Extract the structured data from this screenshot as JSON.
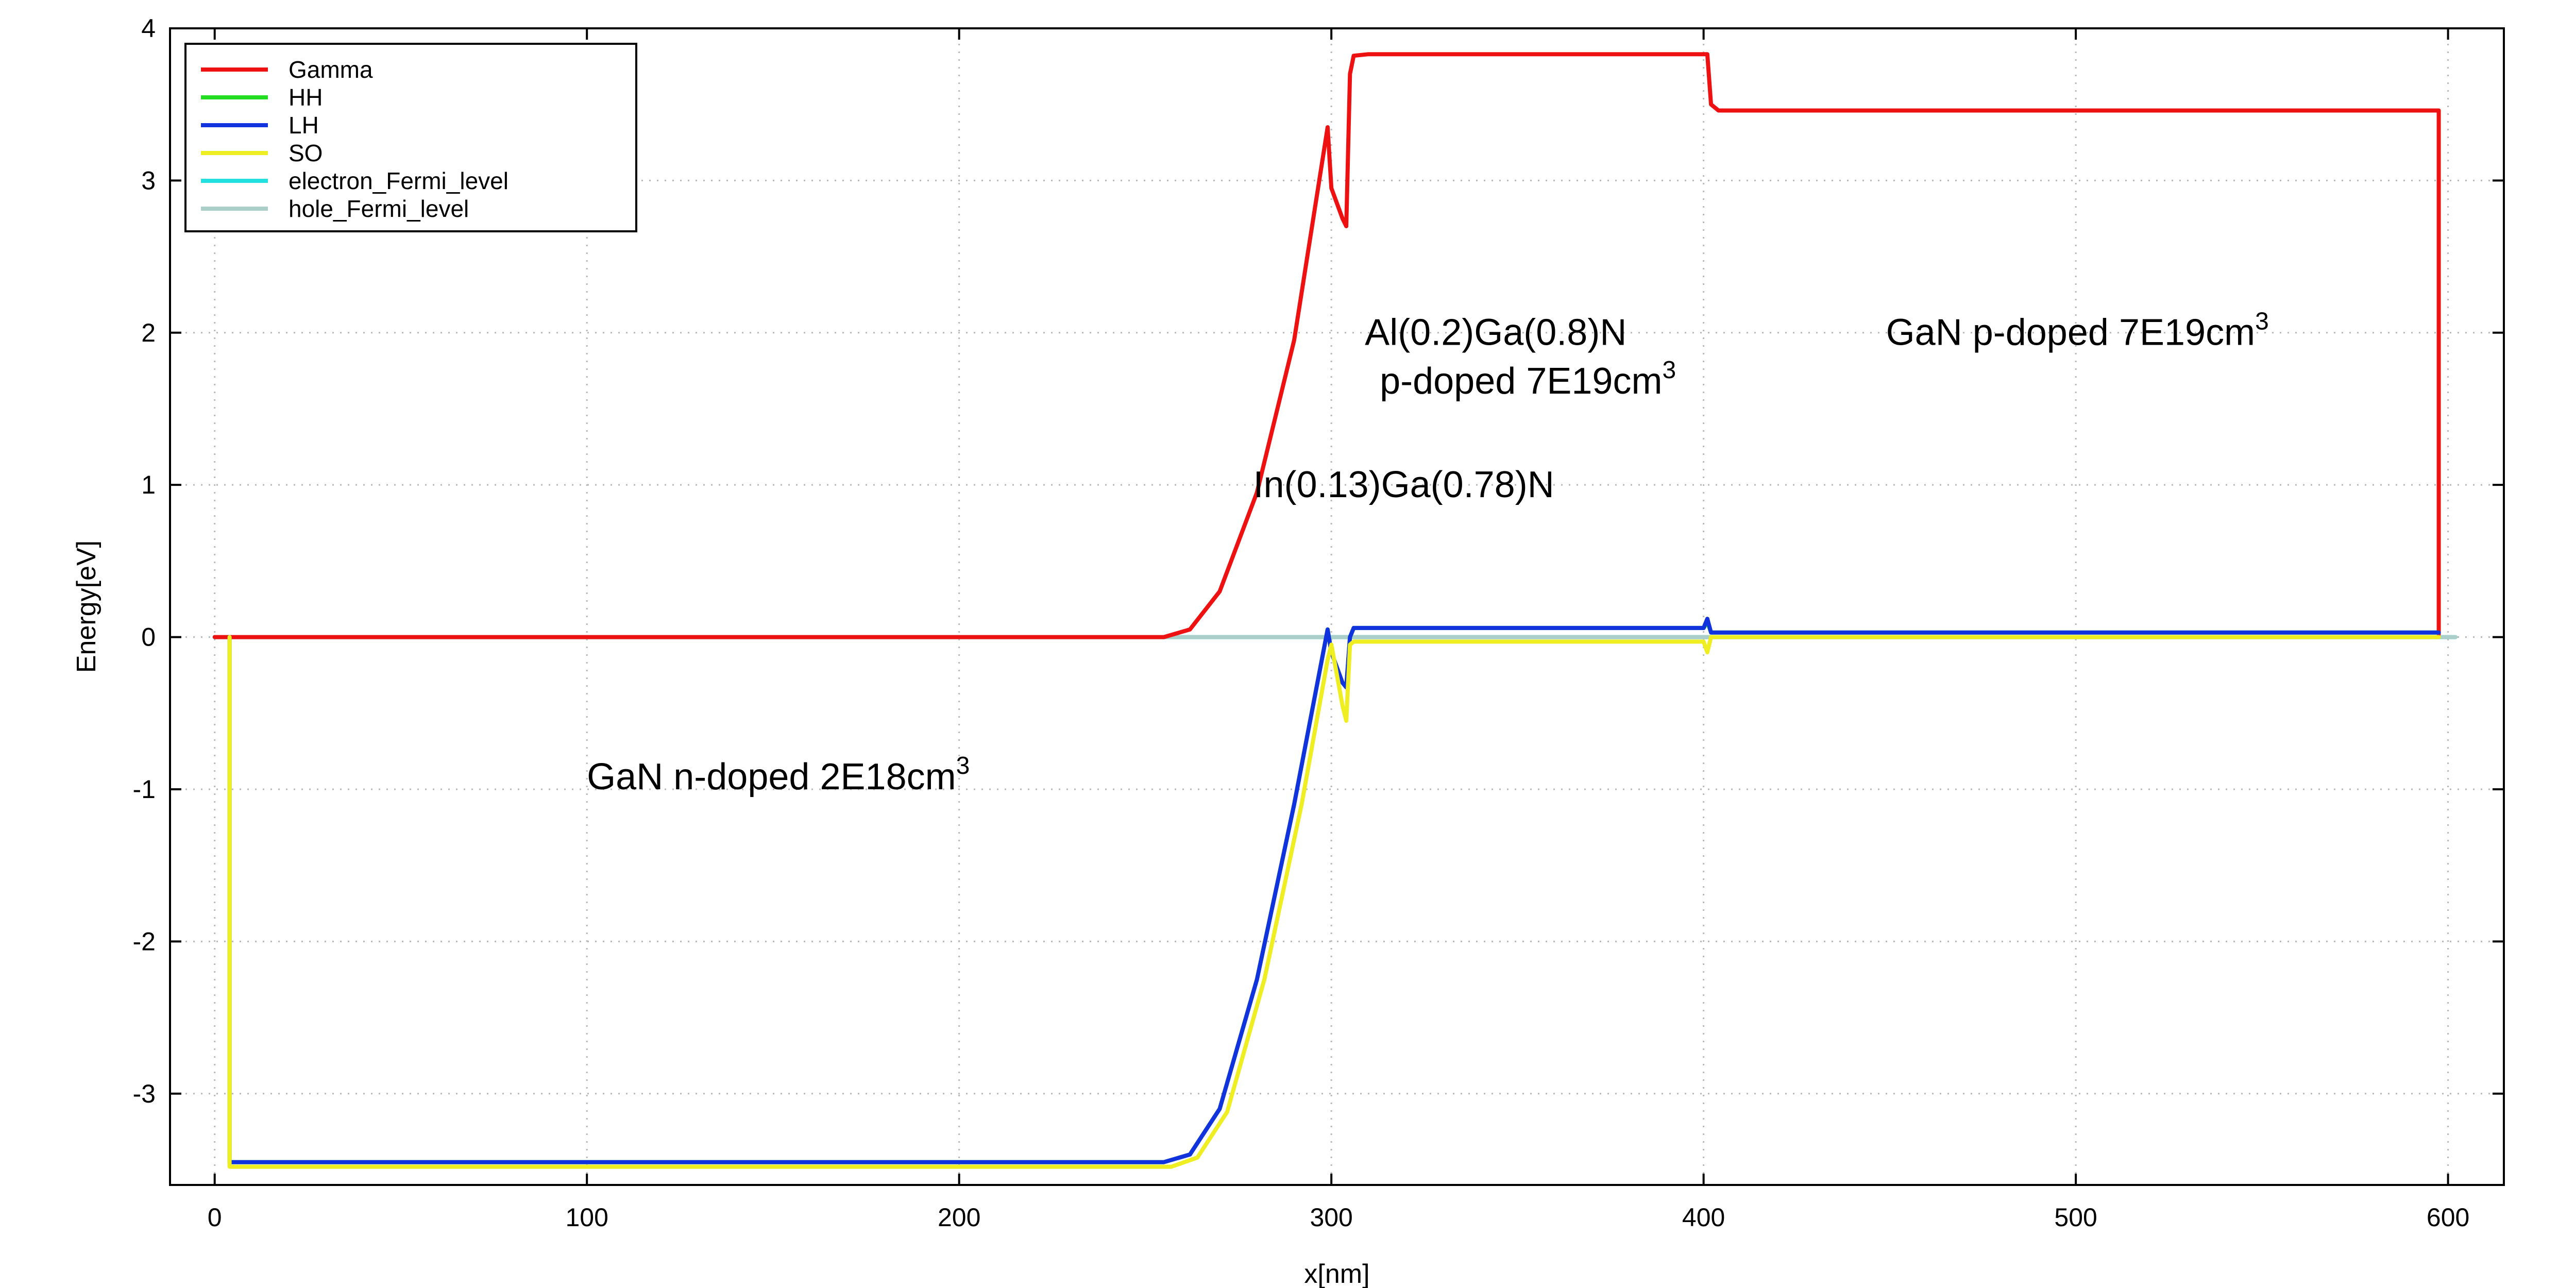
{
  "chart_data": {
    "type": "line",
    "xlabel": "x[nm]",
    "ylabel": "Energy[eV]",
    "xlim": [
      -12,
      615
    ],
    "ylim": [
      -3.6,
      4
    ],
    "xticks": [
      0,
      100,
      200,
      300,
      400,
      500,
      600
    ],
    "yticks": [
      4,
      3,
      2,
      1,
      0,
      -1,
      -2,
      -3
    ],
    "grid": true,
    "legend_position": "top-left",
    "series": [
      {
        "name": "Gamma",
        "color": "#ee1111",
        "x": [
          0,
          255,
          262,
          270,
          280,
          290,
          299,
          300,
          303,
          304,
          305,
          306,
          310,
          400,
          401,
          402,
          404,
          597.5,
          597.5
        ],
        "y": [
          0,
          0,
          0.05,
          0.3,
          0.95,
          1.95,
          3.35,
          2.95,
          2.75,
          2.7,
          3.7,
          3.82,
          3.83,
          3.83,
          3.83,
          3.5,
          3.46,
          3.46,
          0.02
        ]
      },
      {
        "name": "HH",
        "color": "#22dd22",
        "x": [
          4,
          4,
          255,
          262,
          270,
          280,
          290,
          299,
          300,
          303,
          304,
          305,
          306,
          310,
          400,
          401,
          402,
          404,
          597.5
        ],
        "y": [
          0,
          -3.45,
          -3.45,
          -3.4,
          -3.1,
          -2.25,
          -1.1,
          0.05,
          -0.1,
          -0.3,
          -0.33,
          0.0,
          0.06,
          0.06,
          0.06,
          0.1,
          0.03,
          0.03,
          0.03
        ]
      },
      {
        "name": "LH",
        "color": "#1133dd",
        "x": [
          4,
          4,
          255,
          262,
          270,
          280,
          290,
          299,
          300,
          303,
          304,
          305,
          306,
          310,
          400,
          401,
          402,
          404,
          597.5
        ],
        "y": [
          0,
          -3.45,
          -3.45,
          -3.4,
          -3.1,
          -2.25,
          -1.1,
          0.05,
          -0.1,
          -0.3,
          -0.33,
          0.0,
          0.06,
          0.06,
          0.06,
          0.12,
          0.03,
          0.03,
          0.03
        ]
      },
      {
        "name": "SO",
        "color": "#eeee22",
        "x": [
          4,
          4,
          257,
          264,
          272,
          282,
          292,
          299,
          300,
          303,
          304,
          305,
          306,
          310,
          400,
          401,
          402,
          404,
          597.5
        ],
        "y": [
          0,
          -3.48,
          -3.48,
          -3.42,
          -3.12,
          -2.25,
          -1.1,
          -0.15,
          -0.05,
          -0.45,
          -0.55,
          -0.05,
          -0.03,
          -0.03,
          -0.03,
          -0.1,
          0.0,
          0.0,
          0.0
        ]
      },
      {
        "name": "electron_Fermi_level",
        "color": "#22e0e0",
        "x": [
          0,
          602
        ],
        "y": [
          0,
          0
        ]
      },
      {
        "name": "hole_Fermi_level",
        "color": "#a9cfc8",
        "x": [
          0,
          602
        ],
        "y": [
          0,
          0
        ]
      }
    ],
    "annotations": [
      {
        "text": "GaN n-doped 2E18cm",
        "sup": "3",
        "x": 100,
        "y": -1.0
      },
      {
        "text": "In(0.13)Ga(0.78)N",
        "sup": "",
        "x": 279,
        "y": 0.92
      },
      {
        "text": "Al(0.2)Ga(0.8)N",
        "sup": "",
        "x": 309,
        "y": 1.92
      },
      {
        "text": "p-doped 7E19cm",
        "sup": "3",
        "x": 313,
        "y": 1.6
      },
      {
        "text": "GaN p-doped 7E19cm",
        "sup": "3",
        "x": 449,
        "y": 1.92
      }
    ]
  }
}
